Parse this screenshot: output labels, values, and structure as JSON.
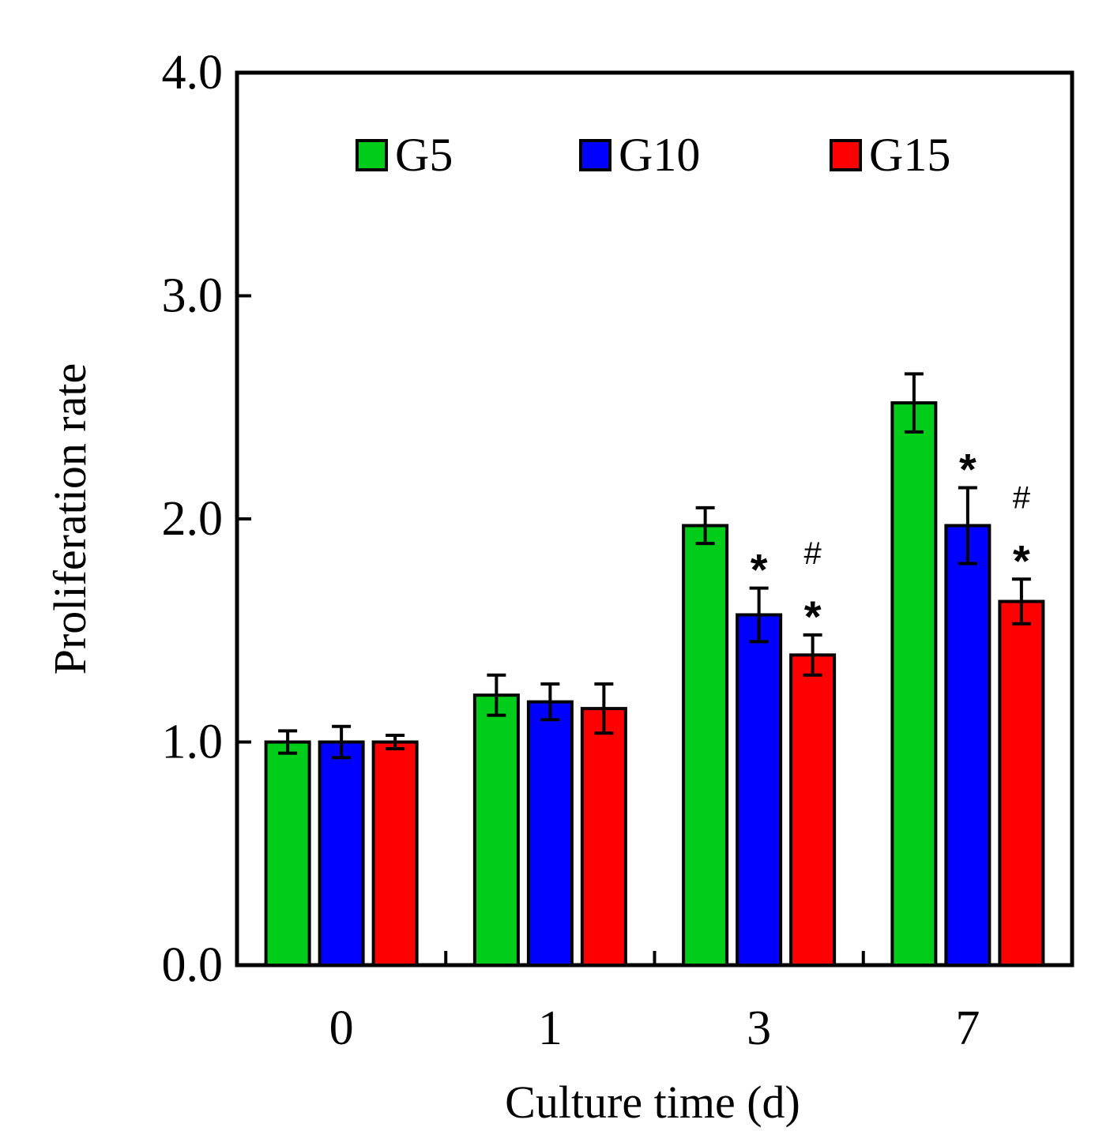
{
  "chart_data": {
    "type": "bar",
    "title": "",
    "xlabel": "Culture time (d)",
    "ylabel": "Proliferation rate",
    "categories": [
      "0",
      "1",
      "3",
      "7"
    ],
    "ylim": [
      0.0,
      4.0
    ],
    "yticks": [
      "0.0",
      "1.0",
      "2.0",
      "3.0",
      "4.0"
    ],
    "ytick_values": [
      0,
      1,
      2,
      3,
      4
    ],
    "legend_position": "top",
    "series": [
      {
        "name": "G5",
        "color": "#00cc1a",
        "values": [
          1.0,
          1.21,
          1.97,
          2.52
        ],
        "errors": [
          0.05,
          0.09,
          0.08,
          0.13
        ],
        "annotations": [
          [],
          [],
          [],
          []
        ]
      },
      {
        "name": "G10",
        "color": "#0000ff",
        "values": [
          1.0,
          1.18,
          1.57,
          1.97
        ],
        "errors": [
          0.07,
          0.08,
          0.12,
          0.17
        ],
        "annotations": [
          [],
          [],
          [
            "*"
          ],
          [
            "*"
          ]
        ]
      },
      {
        "name": "G15",
        "color": "#ff0000",
        "values": [
          1.0,
          1.15,
          1.39,
          1.63
        ],
        "errors": [
          0.03,
          0.11,
          0.09,
          0.1
        ],
        "annotations": [
          [],
          [],
          [
            "*",
            "#"
          ],
          [
            "*",
            "#"
          ]
        ]
      }
    ]
  }
}
